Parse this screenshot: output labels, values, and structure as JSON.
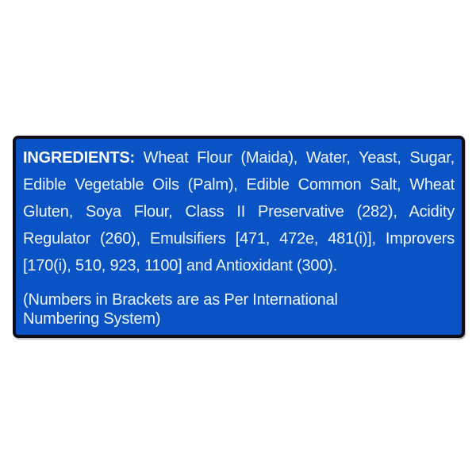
{
  "page": {
    "background_color": "#ffffff"
  },
  "label_panel": {
    "bg_color": "#0a53c4",
    "border_color": "#0e0e1a",
    "text_color": "#eef5fe",
    "heading": "INGREDIENTS:",
    "ingredients_lines": [
      "Wheat Flour (Maida), Water, Yeast, Sugar,",
      "Edible Vegetable Oils (Palm), Edible Common Salt, Wheat",
      "Gluten, Soya Flour, Class II Preservative (282), Acidity",
      "Regulator (260), Emulsifiers [471, 472e, 481(i)], Improvers",
      "[170(i), 510, 923, 1100] and Antioxidant (300)."
    ],
    "note_lines": [
      "(Numbers in Brackets are as Per International",
      "Numbering System)"
    ]
  }
}
